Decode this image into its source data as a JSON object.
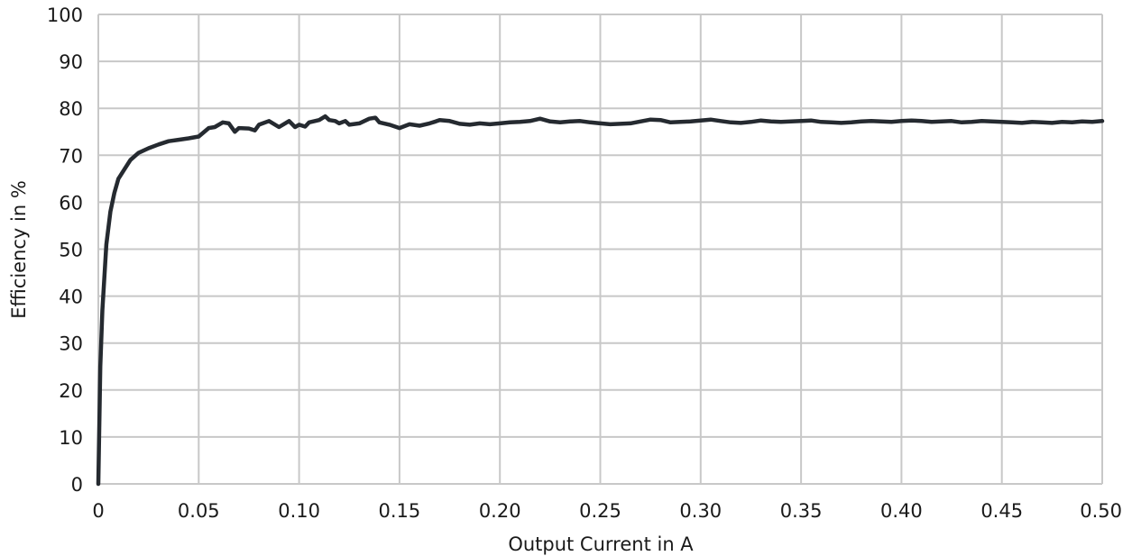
{
  "chart_data": {
    "type": "line",
    "title": "",
    "xlabel": "Output Current in A",
    "ylabel": "Efficiency in %",
    "xlim": [
      0,
      0.5
    ],
    "ylim": [
      0,
      100
    ],
    "grid": true,
    "legend": "none",
    "x_ticks": [
      "0",
      "0.05",
      "0.10",
      "0.15",
      "0.20",
      "0.25",
      "0.30",
      "0.35",
      "0.40",
      "0.45",
      "0.50"
    ],
    "x_tick_values": [
      0,
      0.05,
      0.1,
      0.15,
      0.2,
      0.25,
      0.3,
      0.35,
      0.4,
      0.45,
      0.5
    ],
    "y_ticks": [
      "0",
      "10",
      "20",
      "30",
      "40",
      "50",
      "60",
      "70",
      "80",
      "90",
      "100"
    ],
    "y_tick_values": [
      0,
      10,
      20,
      30,
      40,
      50,
      60,
      70,
      80,
      90,
      100
    ],
    "series": [
      {
        "color": "#252a30",
        "x": [
          0,
          0.001,
          0.002,
          0.004,
          0.006,
          0.008,
          0.01,
          0.013,
          0.016,
          0.02,
          0.025,
          0.03,
          0.035,
          0.04,
          0.045,
          0.05,
          0.055,
          0.058,
          0.062,
          0.065,
          0.068,
          0.07,
          0.075,
          0.078,
          0.08,
          0.085,
          0.09,
          0.095,
          0.098,
          0.1,
          0.103,
          0.105,
          0.11,
          0.113,
          0.115,
          0.118,
          0.12,
          0.123,
          0.125,
          0.13,
          0.135,
          0.138,
          0.14,
          0.145,
          0.15,
          0.155,
          0.16,
          0.165,
          0.168,
          0.17,
          0.175,
          0.18,
          0.185,
          0.19,
          0.195,
          0.2,
          0.205,
          0.21,
          0.215,
          0.22,
          0.225,
          0.23,
          0.235,
          0.24,
          0.245,
          0.25,
          0.255,
          0.26,
          0.265,
          0.27,
          0.275,
          0.28,
          0.285,
          0.29,
          0.295,
          0.3,
          0.305,
          0.31,
          0.315,
          0.32,
          0.325,
          0.33,
          0.335,
          0.34,
          0.345,
          0.35,
          0.355,
          0.36,
          0.365,
          0.37,
          0.375,
          0.38,
          0.385,
          0.39,
          0.395,
          0.4,
          0.405,
          0.41,
          0.415,
          0.42,
          0.425,
          0.43,
          0.435,
          0.44,
          0.445,
          0.45,
          0.455,
          0.46,
          0.465,
          0.47,
          0.475,
          0.48,
          0.485,
          0.49,
          0.495,
          0.5
        ],
        "values": [
          0,
          25,
          37,
          51,
          58,
          62,
          65,
          67,
          69,
          70.5,
          71.5,
          72.3,
          73,
          73.3,
          73.6,
          74,
          75.8,
          76,
          77,
          76.8,
          75,
          75.8,
          75.7,
          75.3,
          76.5,
          77.3,
          76,
          77.3,
          76,
          76.5,
          76.1,
          77,
          77.5,
          78.3,
          77.5,
          77.3,
          76.8,
          77.3,
          76.5,
          76.8,
          77.8,
          78,
          77,
          76.5,
          75.8,
          76.6,
          76.3,
          76.8,
          77.2,
          77.5,
          77.3,
          76.7,
          76.5,
          76.8,
          76.6,
          76.8,
          77,
          77.1,
          77.3,
          77.8,
          77.2,
          77,
          77.2,
          77.3,
          77,
          76.8,
          76.6,
          76.7,
          76.8,
          77.2,
          77.6,
          77.5,
          77,
          77.1,
          77.2,
          77.4,
          77.6,
          77.3,
          77,
          76.9,
          77.1,
          77.4,
          77.2,
          77.1,
          77.2,
          77.3,
          77.4,
          77.1,
          77,
          76.9,
          77,
          77.2,
          77.3,
          77.2,
          77.1,
          77.3,
          77.4,
          77.3,
          77.1,
          77.2,
          77.3,
          77,
          77.1,
          77.3,
          77.2,
          77.1,
          77,
          76.9,
          77.1,
          77,
          76.9,
          77.1,
          77,
          77.2,
          77.1,
          77.3
        ]
      }
    ]
  }
}
